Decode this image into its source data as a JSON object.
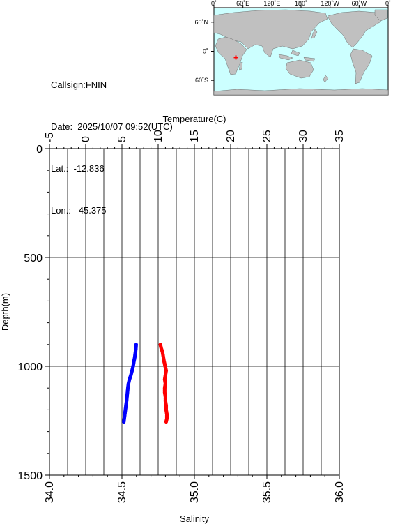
{
  "info": {
    "callsign": "Callsign:FNIN",
    "date": "Date:  2025/10/07 09:52(UTC)",
    "lat": "Lat.:  -12.836",
    "lon": "Lon.:   45.375"
  },
  "map": {
    "lon_ticks": [
      "0˚",
      "60˚E",
      "120˚E",
      "180˚",
      "120˚W",
      "60˚W",
      "0˚"
    ],
    "lat_ticks": [
      "60˚N",
      "0˚",
      "60˚S"
    ],
    "ocean_color": "#ccffff",
    "land_color": "#c0c0c0",
    "marker_color": "#ff0000",
    "marker_lat": -12.836,
    "marker_lon": 45.375
  },
  "chart_data": {
    "type": "scatter",
    "top_axis": {
      "label": "Temperature(C)",
      "range": [
        -5,
        35
      ],
      "ticks": [
        "-5",
        "0",
        "5",
        "10",
        "15",
        "20",
        "25",
        "30",
        "35"
      ]
    },
    "bottom_axis": {
      "label": "Salinity",
      "range": [
        34.0,
        36.0
      ],
      "ticks": [
        "34.0",
        "34.5",
        "35.0",
        "35.5",
        "36.0"
      ]
    },
    "y_axis": {
      "label": "Depth(m)",
      "range": [
        0,
        1500
      ],
      "inverted": true,
      "ticks": [
        "0",
        "500",
        "1000",
        "1500"
      ]
    },
    "grid": true,
    "series": [
      {
        "axis": "temperature",
        "color": "#ff0000",
        "points": [
          [
            10.3,
            900
          ],
          [
            10.4,
            915
          ],
          [
            10.6,
            935
          ],
          [
            10.7,
            955
          ],
          [
            10.8,
            975
          ],
          [
            10.9,
            990
          ],
          [
            11.0,
            1005
          ],
          [
            11.1,
            1020
          ],
          [
            11.0,
            1040
          ],
          [
            10.9,
            1060
          ],
          [
            11.0,
            1080
          ],
          [
            10.9,
            1100
          ],
          [
            10.9,
            1120
          ],
          [
            11.0,
            1140
          ],
          [
            11.0,
            1160
          ],
          [
            11.1,
            1180
          ],
          [
            11.1,
            1200
          ],
          [
            11.2,
            1220
          ],
          [
            11.2,
            1240
          ],
          [
            11.1,
            1255
          ]
        ]
      },
      {
        "axis": "salinity",
        "color": "#0000ff",
        "points": [
          [
            34.598,
            900
          ],
          [
            34.596,
            920
          ],
          [
            34.592,
            940
          ],
          [
            34.588,
            960
          ],
          [
            34.582,
            980
          ],
          [
            34.577,
            1000
          ],
          [
            34.57,
            1020
          ],
          [
            34.562,
            1040
          ],
          [
            34.552,
            1060
          ],
          [
            34.545,
            1080
          ],
          [
            34.541,
            1100
          ],
          [
            34.538,
            1120
          ],
          [
            34.535,
            1140
          ],
          [
            34.532,
            1160
          ],
          [
            34.528,
            1180
          ],
          [
            34.524,
            1200
          ],
          [
            34.52,
            1220
          ],
          [
            34.516,
            1240
          ],
          [
            34.513,
            1255
          ]
        ]
      }
    ]
  }
}
